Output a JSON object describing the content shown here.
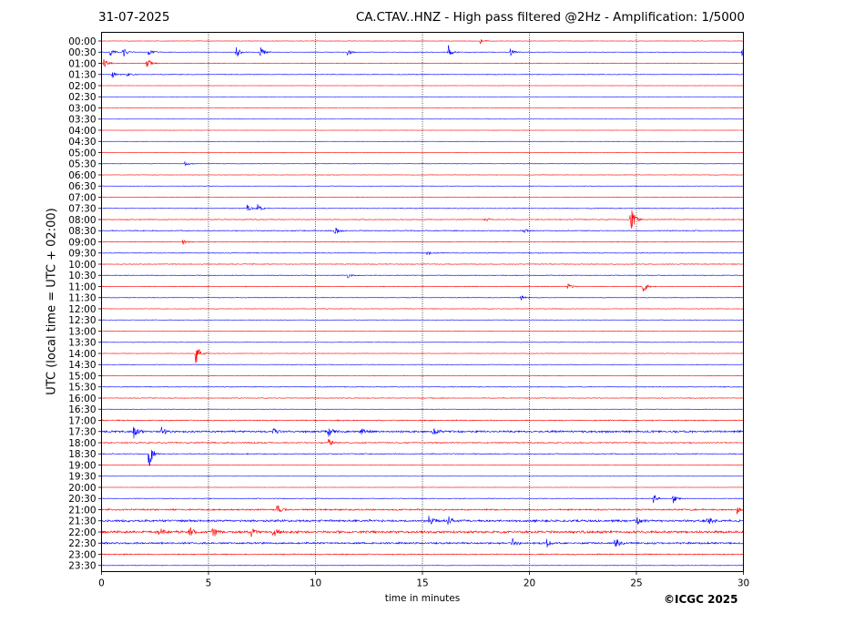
{
  "header": {
    "date": "31-07-2025",
    "title": "CA.CTAV..HNZ - High pass filtered @2Hz - Amplification: 1/5000"
  },
  "footer": {
    "copyright": "©ICGC 2025"
  },
  "chart_data": {
    "type": "line",
    "title": "CA.CTAV..HNZ - High pass filtered @2Hz - Amplification: 1/5000",
    "xlabel": "time in minutes",
    "ylabel": "UTC (local time = UTC + 02:00)",
    "xlim": [
      0,
      30
    ],
    "x_ticks": [
      0,
      5,
      10,
      15,
      20,
      25,
      30
    ],
    "x_gridlines": [
      5,
      10,
      15,
      20,
      25
    ],
    "grid": "vertical dotted",
    "colors": {
      "even_trace": "#ff0000",
      "odd_trace": "#0000ff"
    },
    "rows": [
      "00:00",
      "00:30",
      "01:00",
      "01:30",
      "02:00",
      "02:30",
      "03:00",
      "03:30",
      "04:00",
      "04:30",
      "05:00",
      "05:30",
      "06:00",
      "06:30",
      "07:00",
      "07:30",
      "08:00",
      "08:30",
      "09:00",
      "09:30",
      "10:00",
      "10:30",
      "11:00",
      "11:30",
      "12:00",
      "12:30",
      "13:00",
      "13:30",
      "14:00",
      "14:30",
      "15:00",
      "15:30",
      "16:00",
      "16:30",
      "17:00",
      "17:30",
      "18:00",
      "18:30",
      "19:00",
      "19:30",
      "20:00",
      "20:30",
      "21:00",
      "21:30",
      "22:00",
      "22:30",
      "23:00",
      "23:30"
    ],
    "noise_level": [
      0.2,
      0.25,
      0.3,
      0.3,
      0.08,
      0.08,
      0.08,
      0.08,
      0.1,
      0.12,
      0.15,
      0.2,
      0.2,
      0.2,
      0.25,
      0.3,
      0.35,
      0.4,
      0.35,
      0.3,
      0.3,
      0.3,
      0.3,
      0.25,
      0.25,
      0.2,
      0.2,
      0.2,
      0.2,
      0.25,
      0.3,
      0.3,
      0.3,
      0.2,
      0.5,
      0.9,
      0.5,
      0.4,
      0.15,
      0.12,
      0.12,
      0.3,
      0.7,
      1.0,
      1.1,
      0.8,
      0.5,
      0.25
    ],
    "events": [
      {
        "row": 0,
        "minute": 17.7,
        "amp": 3
      },
      {
        "row": 1,
        "minute": 0.4,
        "amp": 5
      },
      {
        "row": 1,
        "minute": 1.0,
        "amp": 6
      },
      {
        "row": 1,
        "minute": 2.2,
        "amp": 4
      },
      {
        "row": 1,
        "minute": 6.3,
        "amp": 7
      },
      {
        "row": 1,
        "minute": 7.4,
        "amp": 7
      },
      {
        "row": 1,
        "minute": 11.5,
        "amp": 4
      },
      {
        "row": 1,
        "minute": 16.2,
        "amp": 9
      },
      {
        "row": 1,
        "minute": 19.1,
        "amp": 4
      },
      {
        "row": 1,
        "minute": 29.95,
        "amp": 14
      },
      {
        "row": 2,
        "minute": 0.1,
        "amp": 6
      },
      {
        "row": 2,
        "minute": 2.1,
        "amp": 8
      },
      {
        "row": 3,
        "minute": 0.5,
        "amp": 4
      },
      {
        "row": 3,
        "minute": 1.2,
        "amp": 3
      },
      {
        "row": 11,
        "minute": 3.9,
        "amp": 3
      },
      {
        "row": 15,
        "minute": 6.8,
        "amp": 4
      },
      {
        "row": 15,
        "minute": 7.3,
        "amp": 5
      },
      {
        "row": 16,
        "minute": 24.7,
        "amp": 22
      },
      {
        "row": 16,
        "minute": 17.9,
        "amp": 3
      },
      {
        "row": 17,
        "minute": 10.9,
        "amp": 5
      },
      {
        "row": 17,
        "minute": 19.7,
        "amp": 3
      },
      {
        "row": 18,
        "minute": 3.8,
        "amp": 3
      },
      {
        "row": 19,
        "minute": 15.2,
        "amp": 3
      },
      {
        "row": 21,
        "minute": 11.5,
        "amp": 3
      },
      {
        "row": 22,
        "minute": 25.3,
        "amp": 7
      },
      {
        "row": 22,
        "minute": 21.8,
        "amp": 4
      },
      {
        "row": 23,
        "minute": 19.6,
        "amp": 3
      },
      {
        "row": 28,
        "minute": 4.4,
        "amp": 15
      },
      {
        "row": 35,
        "minute": 1.5,
        "amp": 7
      },
      {
        "row": 35,
        "minute": 2.8,
        "amp": 5
      },
      {
        "row": 35,
        "minute": 8.0,
        "amp": 6
      },
      {
        "row": 35,
        "minute": 10.6,
        "amp": 6
      },
      {
        "row": 35,
        "minute": 12.1,
        "amp": 6
      },
      {
        "row": 35,
        "minute": 15.5,
        "amp": 5
      },
      {
        "row": 36,
        "minute": 10.6,
        "amp": 5
      },
      {
        "row": 37,
        "minute": 2.2,
        "amp": 18
      },
      {
        "row": 41,
        "minute": 25.8,
        "amp": 6
      },
      {
        "row": 41,
        "minute": 26.7,
        "amp": 6
      },
      {
        "row": 42,
        "minute": 8.2,
        "amp": 6
      },
      {
        "row": 42,
        "minute": 29.7,
        "amp": 5
      },
      {
        "row": 43,
        "minute": 15.3,
        "amp": 6
      },
      {
        "row": 43,
        "minute": 16.2,
        "amp": 6
      },
      {
        "row": 43,
        "minute": 25.0,
        "amp": 5
      },
      {
        "row": 43,
        "minute": 28.3,
        "amp": 6
      },
      {
        "row": 44,
        "minute": 2.7,
        "amp": 6
      },
      {
        "row": 44,
        "minute": 4.1,
        "amp": 7
      },
      {
        "row": 44,
        "minute": 5.2,
        "amp": 7
      },
      {
        "row": 44,
        "minute": 7.0,
        "amp": 6
      },
      {
        "row": 44,
        "minute": 8.0,
        "amp": 7
      },
      {
        "row": 45,
        "minute": 19.2,
        "amp": 5
      },
      {
        "row": 45,
        "minute": 20.8,
        "amp": 5
      },
      {
        "row": 45,
        "minute": 24.0,
        "amp": 7
      }
    ]
  }
}
